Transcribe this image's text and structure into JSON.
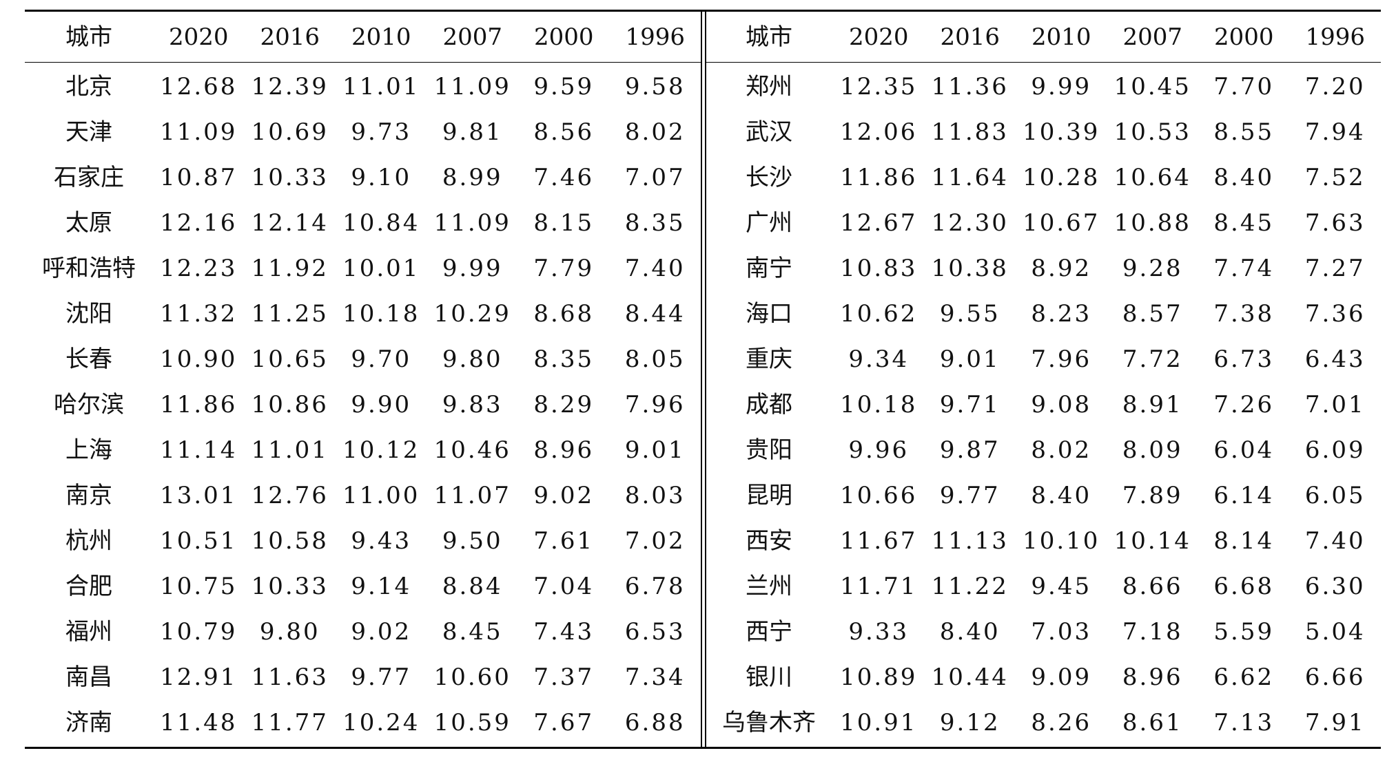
{
  "table": {
    "headers": [
      "城市",
      "2020",
      "2016",
      "2010",
      "2007",
      "2000",
      "1996"
    ],
    "left_rows": [
      [
        "北京",
        "12.68",
        "12.39",
        "11.01",
        "11.09",
        "9.59",
        "9.58"
      ],
      [
        "天津",
        "11.09",
        "10.69",
        "9.73",
        "9.81",
        "8.56",
        "8.02"
      ],
      [
        "石家庄",
        "10.87",
        "10.33",
        "9.10",
        "8.99",
        "7.46",
        "7.07"
      ],
      [
        "太原",
        "12.16",
        "12.14",
        "10.84",
        "11.09",
        "8.15",
        "8.35"
      ],
      [
        "呼和浩特",
        "12.23",
        "11.92",
        "10.01",
        "9.99",
        "7.79",
        "7.40"
      ],
      [
        "沈阳",
        "11.32",
        "11.25",
        "10.18",
        "10.29",
        "8.68",
        "8.44"
      ],
      [
        "长春",
        "10.90",
        "10.65",
        "9.70",
        "9.80",
        "8.35",
        "8.05"
      ],
      [
        "哈尔滨",
        "11.86",
        "10.86",
        "9.90",
        "9.83",
        "8.29",
        "7.96"
      ],
      [
        "上海",
        "11.14",
        "11.01",
        "10.12",
        "10.46",
        "8.96",
        "9.01"
      ],
      [
        "南京",
        "13.01",
        "12.76",
        "11.00",
        "11.07",
        "9.02",
        "8.03"
      ],
      [
        "杭州",
        "10.51",
        "10.58",
        "9.43",
        "9.50",
        "7.61",
        "7.02"
      ],
      [
        "合肥",
        "10.75",
        "10.33",
        "9.14",
        "8.84",
        "7.04",
        "6.78"
      ],
      [
        "福州",
        "10.79",
        "9.80",
        "9.02",
        "8.45",
        "7.43",
        "6.53"
      ],
      [
        "南昌",
        "12.91",
        "11.63",
        "9.77",
        "10.60",
        "7.37",
        "7.34"
      ],
      [
        "济南",
        "11.48",
        "11.77",
        "10.24",
        "10.59",
        "7.67",
        "6.88"
      ]
    ],
    "right_rows": [
      [
        "郑州",
        "12.35",
        "11.36",
        "9.99",
        "10.45",
        "7.70",
        "7.20"
      ],
      [
        "武汉",
        "12.06",
        "11.83",
        "10.39",
        "10.53",
        "8.55",
        "7.94"
      ],
      [
        "长沙",
        "11.86",
        "11.64",
        "10.28",
        "10.64",
        "8.40",
        "7.52"
      ],
      [
        "广州",
        "12.67",
        "12.30",
        "10.67",
        "10.88",
        "8.45",
        "7.63"
      ],
      [
        "南宁",
        "10.83",
        "10.38",
        "8.92",
        "9.28",
        "7.74",
        "7.27"
      ],
      [
        "海口",
        "10.62",
        "9.55",
        "8.23",
        "8.57",
        "7.38",
        "7.36"
      ],
      [
        "重庆",
        "9.34",
        "9.01",
        "7.96",
        "7.72",
        "6.73",
        "6.43"
      ],
      [
        "成都",
        "10.18",
        "9.71",
        "9.08",
        "8.91",
        "7.26",
        "7.01"
      ],
      [
        "贵阳",
        "9.96",
        "9.87",
        "8.02",
        "8.09",
        "6.04",
        "6.09"
      ],
      [
        "昆明",
        "10.66",
        "9.77",
        "8.40",
        "7.89",
        "6.14",
        "6.05"
      ],
      [
        "西安",
        "11.67",
        "11.13",
        "10.10",
        "10.14",
        "8.14",
        "7.40"
      ],
      [
        "兰州",
        "11.71",
        "11.22",
        "9.45",
        "8.66",
        "6.68",
        "6.30"
      ],
      [
        "西宁",
        "9.33",
        "8.40",
        "7.03",
        "7.18",
        "5.59",
        "5.04"
      ],
      [
        "银川",
        "10.89",
        "10.44",
        "9.09",
        "8.96",
        "6.62",
        "6.66"
      ],
      [
        "乌鲁木齐",
        "10.91",
        "9.12",
        "8.26",
        "8.61",
        "7.13",
        "7.91"
      ]
    ]
  }
}
